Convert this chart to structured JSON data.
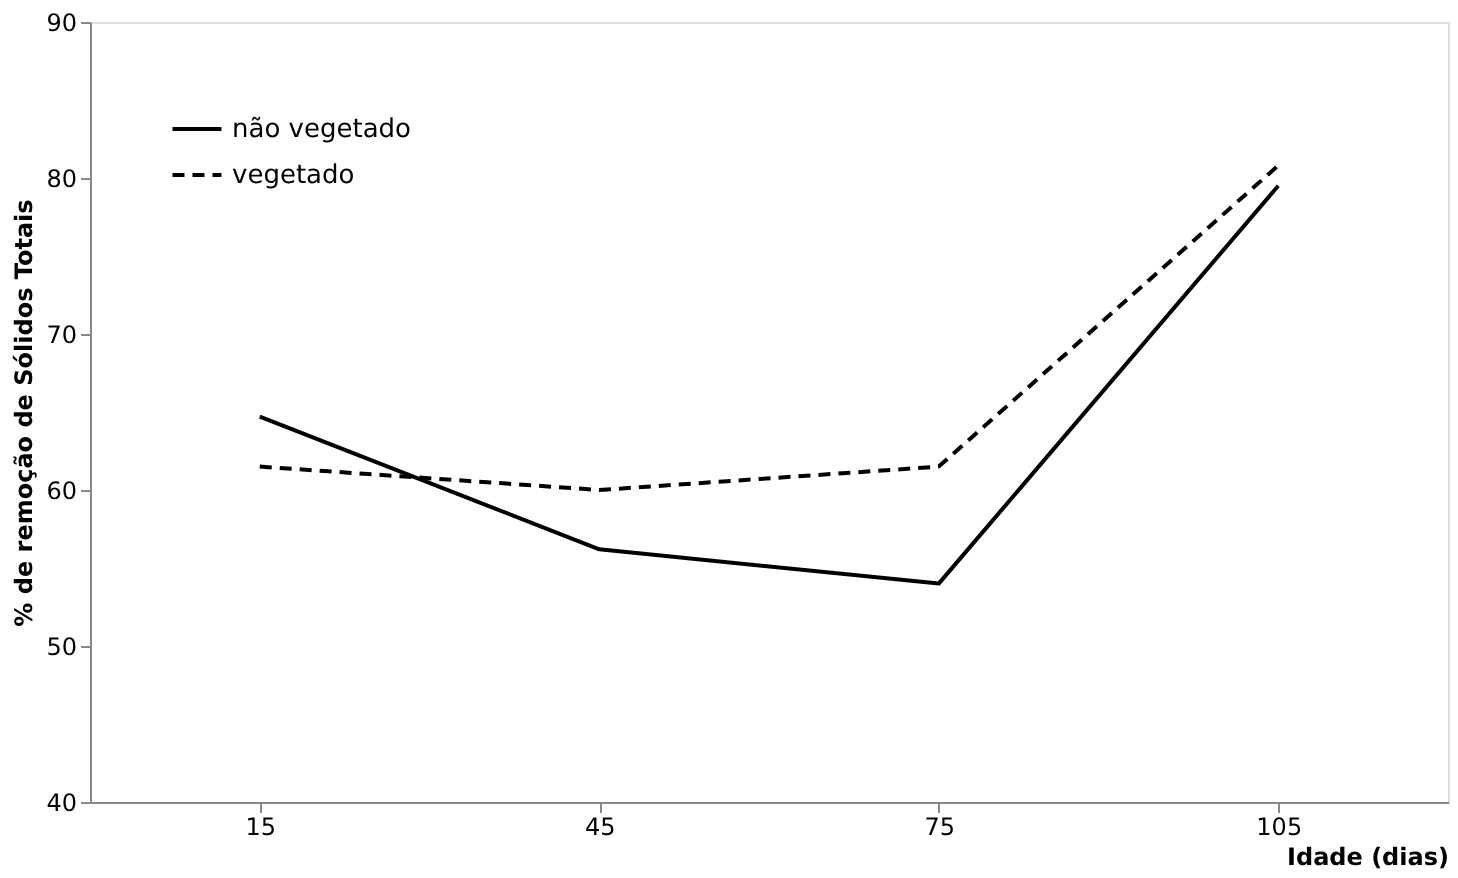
{
  "chart_data": {
    "type": "line",
    "xlabel": "Idade (dias)",
    "ylabel": "% de remoção de Sólidos Totais",
    "categories": [
      "15",
      "45",
      "75",
      "105"
    ],
    "series": [
      {
        "name": "não vegetado",
        "color": "#000000",
        "line_style": "solid",
        "values": [
          64.7,
          56.2,
          54.0,
          79.5
        ]
      },
      {
        "name": "vegetado",
        "color": "#000000",
        "line_style": "dashed",
        "values": [
          61.5,
          60.0,
          61.5,
          80.8
        ]
      }
    ],
    "ylim": [
      40,
      90
    ],
    "yticks": [
      40,
      50,
      60,
      70,
      80,
      90
    ],
    "grid": false,
    "legend": "top left",
    "marker": "none"
  }
}
